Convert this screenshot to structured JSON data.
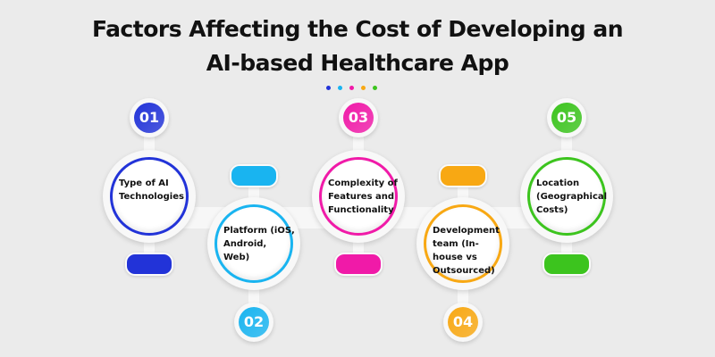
{
  "title_line1": "Factors Affecting the Cost of Developing an",
  "title_line2": "AI-based Healthcare App",
  "accent_colors": [
    "#2233d8",
    "#19b4f0",
    "#f01aa8",
    "#f8a813",
    "#3cc41e"
  ],
  "factors": [
    {
      "number": "01",
      "label": "Type of AI Technologies",
      "color": "#2233d8"
    },
    {
      "number": "02",
      "label": "Platform (iOS, Android, Web)",
      "color": "#19b4f0"
    },
    {
      "number": "03",
      "label": "Complexity of Features and Functionality",
      "color": "#f01aa8"
    },
    {
      "number": "04",
      "label": "Development team (In-house vs Outsourced)",
      "color": "#f8a813"
    },
    {
      "number": "05",
      "label": "Location (Geographical Costs)",
      "color": "#3cc41e"
    }
  ]
}
